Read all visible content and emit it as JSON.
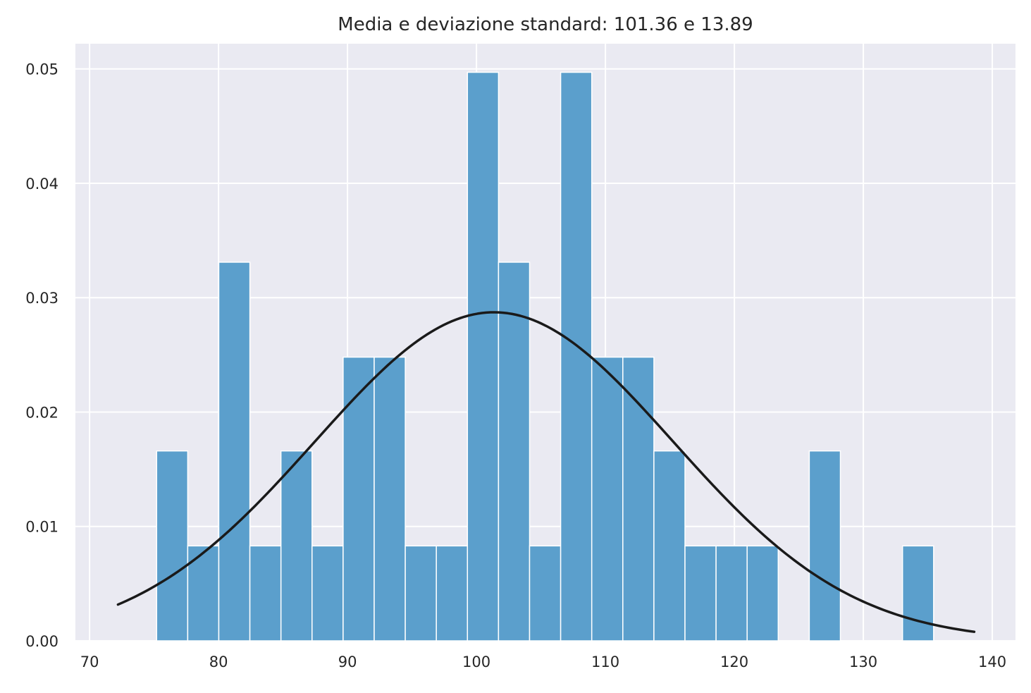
{
  "chart_data": {
    "type": "bar",
    "subtype": "histogram-with-density-curve",
    "title": "Media e deviazione standard: 101.36 e 13.89",
    "xlabel": "",
    "ylabel": "",
    "xlim": [
      68.9,
      141.8
    ],
    "ylim": [
      0,
      0.0522
    ],
    "xticks": [
      70,
      80,
      90,
      100,
      110,
      120,
      130,
      140
    ],
    "yticks": [
      0.0,
      0.01,
      0.02,
      0.03,
      0.04,
      0.05
    ],
    "xtick_labels": [
      "70",
      "80",
      "90",
      "100",
      "110",
      "120",
      "130",
      "140"
    ],
    "ytick_labels": [
      "0.00",
      "0.01",
      "0.02",
      "0.03",
      "0.04",
      "0.05"
    ],
    "grid": true,
    "legend": "none",
    "bins": {
      "start": 75.2,
      "width": 2.41,
      "edges_end": 135.45,
      "density": [
        0.0166,
        0.0083,
        0.0331,
        0.0083,
        0.0166,
        0.0083,
        0.0248,
        0.0248,
        0.0083,
        0.0083,
        0.0497,
        0.0331,
        0.0083,
        0.0497,
        0.0248,
        0.0248,
        0.0166,
        0.0083,
        0.0083,
        0.0083,
        0.0,
        0.0166,
        0.0,
        0.0,
        0.0083
      ]
    },
    "normal_curve": {
      "mean": 101.36,
      "std": 13.89,
      "x_range": [
        72.2,
        138.6
      ]
    },
    "colors": {
      "background": "#eaeaf2",
      "grid": "#ffffff",
      "bar_fill": "#5b9fcc",
      "bar_edge": "#ffffff",
      "curve": "#1a1a1a"
    }
  }
}
